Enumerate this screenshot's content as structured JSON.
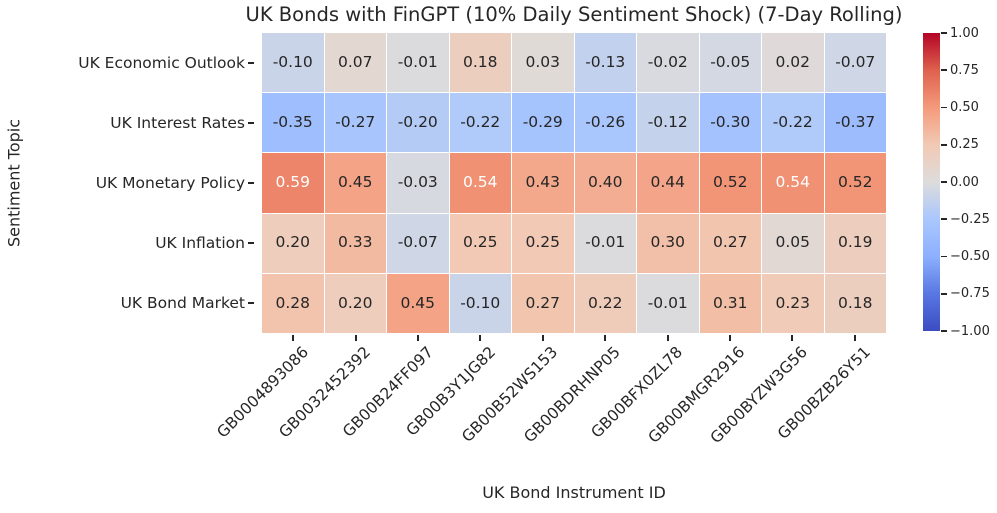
{
  "chart_data": {
    "type": "heatmap",
    "title": "UK Bonds with FinGPT (10% Daily Sentiment Shock) (7-Day Rolling)",
    "xlabel": "UK Bond Instrument ID",
    "ylabel": "Sentiment Topic",
    "rows": [
      "UK Economic Outlook",
      "UK Interest Rates",
      "UK Monetary Policy",
      "UK Inflation",
      "UK Bond Market"
    ],
    "columns": [
      "GB0004893086",
      "GB0032452392",
      "GB00B24FF097",
      "GB00B3Y1JG82",
      "GB00B52WS153",
      "GB00BDRHNP05",
      "GB00BFX0ZL78",
      "GB00BMGR2916",
      "GB00BYZW3G56",
      "GB00BZB26Y51"
    ],
    "values": [
      [
        -0.1,
        0.07,
        -0.01,
        0.18,
        0.03,
        -0.13,
        -0.02,
        -0.05,
        0.02,
        -0.07
      ],
      [
        -0.35,
        -0.27,
        -0.2,
        -0.22,
        -0.29,
        -0.26,
        -0.12,
        -0.3,
        -0.22,
        -0.37
      ],
      [
        0.59,
        0.45,
        -0.03,
        0.54,
        0.43,
        0.4,
        0.44,
        0.52,
        0.54,
        0.52
      ],
      [
        0.2,
        0.33,
        -0.07,
        0.25,
        0.25,
        -0.01,
        0.3,
        0.27,
        0.05,
        0.19
      ],
      [
        0.28,
        0.2,
        0.45,
        -0.1,
        0.27,
        0.22,
        -0.01,
        0.31,
        0.23,
        0.18
      ]
    ],
    "value_format": "2f",
    "vmin": -1.0,
    "vmax": 1.0,
    "colormap": "coolwarm",
    "colormap_anchors": [
      "#3b4cc0",
      "#5977e3",
      "#8db0fe",
      "#aac7fd",
      "#dddcdc",
      "#f2c9b4",
      "#f49a7b",
      "#de614d",
      "#b40426"
    ],
    "colorbar": {
      "tick_labels": [
        "1.00",
        "0.75",
        "0.50",
        "0.25",
        "0.00",
        "−0.25",
        "−0.50",
        "−0.75",
        "−1.00"
      ],
      "tick_values": [
        1.0,
        0.75,
        0.5,
        0.25,
        0.0,
        -0.25,
        -0.5,
        -0.75,
        -1.0
      ]
    },
    "grid": false,
    "legend_position": "right-colorbar"
  },
  "colors": {
    "text": "#262626",
    "annotation_dark": "#262626",
    "annotation_light": "#ffffff",
    "background": "#ffffff"
  }
}
